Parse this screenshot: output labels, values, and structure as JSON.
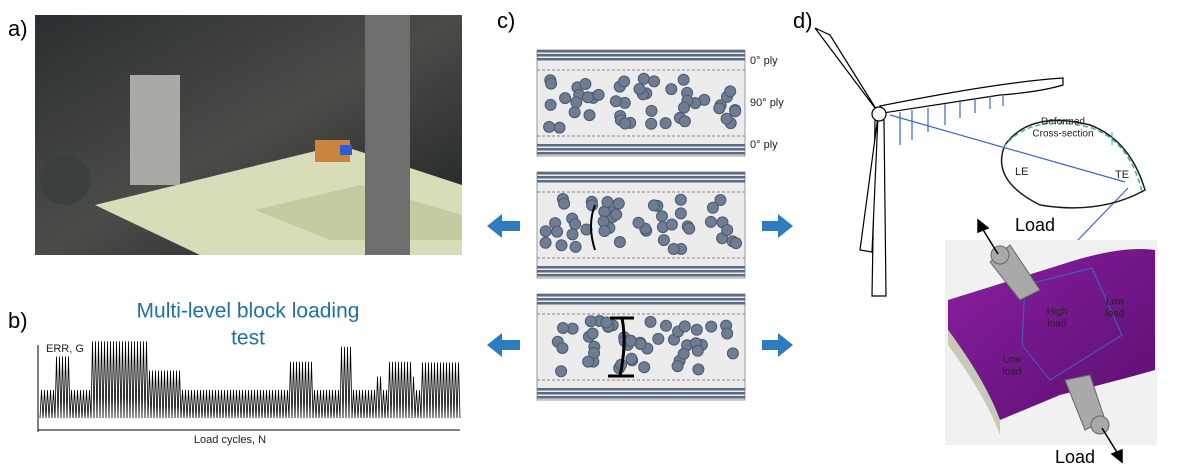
{
  "panels": {
    "a": {
      "label": "a)"
    },
    "b": {
      "label": "b)",
      "title_line1": "Multi-level block loading",
      "title_line2": "test",
      "y_axis": "ERR, G",
      "x_axis": "Load cycles, N"
    },
    "c": {
      "label": "c)",
      "ply_top": "0° ply",
      "ply_mid": "90° ply",
      "ply_bottom": "0° ply"
    },
    "d": {
      "label": "d)",
      "deformed_line1": "Deformed",
      "deformed_line2": "Cross-section",
      "le": "LE",
      "te": "TE",
      "load_top": "Load",
      "high_line1": "High",
      "high_line2": "load",
      "low_right_line1": "Low",
      "low_right_line2": "load",
      "low_left_line1": "Low",
      "low_left_line2": "load",
      "load_bottom": "Load"
    }
  }
}
